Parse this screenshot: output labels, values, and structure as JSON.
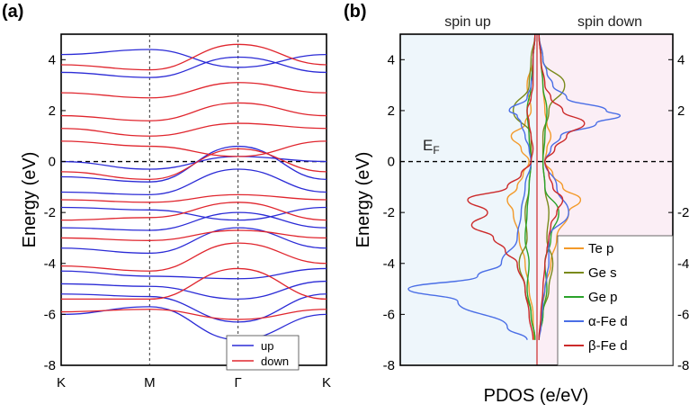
{
  "panel_a_label": "(a)",
  "panel_b_label": "(b)",
  "chart_data": [
    {
      "type": "line",
      "panel": "(a)",
      "ylabel": "Energy (eV)",
      "ylim": [
        -8,
        5
      ],
      "yticks": [
        "4",
        "2",
        "0",
        "-2",
        "-4",
        "-6",
        "-8"
      ],
      "x_ticks": [
        "K",
        "M",
        "Γ",
        "K"
      ],
      "fermi_level": 0,
      "legend": {
        "placement": "bottom-right",
        "entries": [
          "up",
          "down"
        ]
      },
      "colors": {
        "up": "#2b2bd6",
        "down": "#e0262e"
      },
      "x": [
        0,
        1,
        2,
        3
      ],
      "series": [
        {
          "name": "up",
          "bands": [
            [
              -6.0,
              -5.7,
              -7.0,
              -6.0
            ],
            [
              -5.2,
              -5.3,
              -6.3,
              -5.2
            ],
            [
              -4.8,
              -4.9,
              -5.4,
              -4.7
            ],
            [
              -4.3,
              -4.5,
              -4.6,
              -4.2
            ],
            [
              -3.4,
              -3.6,
              -2.6,
              -3.4
            ],
            [
              -2.6,
              -2.7,
              -2.0,
              -2.6
            ],
            [
              -1.8,
              -1.9,
              -2.3,
              -1.8
            ],
            [
              -1.2,
              -1.3,
              -0.3,
              -1.2
            ],
            [
              -0.6,
              -0.8,
              0.6,
              -0.7
            ],
            [
              0.0,
              -0.3,
              0.2,
              0.0
            ],
            [
              3.5,
              3.3,
              4.1,
              3.5
            ],
            [
              4.2,
              4.4,
              3.7,
              4.2
            ]
          ]
        },
        {
          "name": "down",
          "bands": [
            [
              -5.9,
              -5.8,
              -6.2,
              -5.8
            ],
            [
              -5.4,
              -5.4,
              -4.2,
              -5.4
            ],
            [
              -4.1,
              -4.3,
              -3.2,
              -4.0
            ],
            [
              -3.0,
              -3.1,
              -2.7,
              -3.0
            ],
            [
              -2.3,
              -2.2,
              -1.6,
              -2.3
            ],
            [
              -1.5,
              -1.6,
              -1.3,
              -1.5
            ],
            [
              -0.4,
              -0.7,
              0.5,
              -0.4
            ],
            [
              0.8,
              0.6,
              0.2,
              0.8
            ],
            [
              1.3,
              1.0,
              1.5,
              1.3
            ],
            [
              1.8,
              1.6,
              2.3,
              1.8
            ],
            [
              2.7,
              2.5,
              3.1,
              2.7
            ],
            [
              3.8,
              3.6,
              4.6,
              3.8
            ]
          ]
        }
      ]
    },
    {
      "type": "line",
      "panel": "(b)",
      "ylabel": "Energy (eV)",
      "xlabel": "PDOS (e/eV)",
      "ylim": [
        -8,
        5
      ],
      "yticks": [
        "4",
        "2",
        "0",
        "-2",
        "-4",
        "-6",
        "-8"
      ],
      "right_yticks": [
        "4",
        "2",
        "-2",
        "-4",
        "-6",
        "-8"
      ],
      "headers": {
        "left": "spin up",
        "right": "spin down"
      },
      "fermi_label": "E",
      "fermi_label_sub": "F",
      "fermi_level": 0,
      "background": {
        "spin_up": "#eef6fb",
        "spin_down": "#fbeef5"
      },
      "legend": {
        "placement": "bottom-right"
      },
      "series": [
        {
          "name": "Te p",
          "color": "#f39a2a",
          "energy": [
            -7,
            -6,
            -5,
            -4,
            -3,
            -2,
            -1.5,
            -1,
            -0.5,
            0,
            0.5,
            1,
            1.5,
            2,
            3,
            4,
            5
          ],
          "spin_up": [
            0.15,
            0.2,
            0.4,
            0.6,
            0.9,
            1.2,
            1.5,
            1.0,
            0.7,
            0.4,
            0.8,
            1.3,
            0.6,
            0.3,
            0.5,
            0.2,
            0.1
          ],
          "spin_down": [
            0.1,
            0.2,
            0.4,
            0.7,
            1.0,
            1.6,
            2.2,
            1.3,
            0.8,
            0.4,
            0.5,
            0.7,
            0.5,
            0.4,
            0.3,
            0.2,
            0.1
          ]
        },
        {
          "name": "Ge s",
          "color": "#7a8a1c",
          "energy": [
            -7,
            -6,
            -5,
            -4,
            -3,
            -2,
            -1,
            0,
            1,
            2,
            3,
            4,
            5
          ],
          "spin_up": [
            0.1,
            0.3,
            0.6,
            0.9,
            0.5,
            0.6,
            0.4,
            0.3,
            0.3,
            1.2,
            0.4,
            0.3,
            0.1
          ],
          "spin_down": [
            0.1,
            0.3,
            0.6,
            0.8,
            0.5,
            0.6,
            0.4,
            0.3,
            0.3,
            0.6,
            1.4,
            0.3,
            0.1
          ]
        },
        {
          "name": "Ge p",
          "color": "#2aa22a",
          "energy": [
            -7,
            -6,
            -5,
            -4,
            -3,
            -2,
            -1,
            0,
            1,
            2,
            3,
            4,
            5
          ],
          "spin_up": [
            0.1,
            0.3,
            0.5,
            0.4,
            0.6,
            0.5,
            0.4,
            0.3,
            0.4,
            0.5,
            0.3,
            0.2,
            0.1
          ],
          "spin_down": [
            0.1,
            0.3,
            0.5,
            0.4,
            0.7,
            1.1,
            0.4,
            0.3,
            0.4,
            0.5,
            0.3,
            0.2,
            0.1
          ]
        },
        {
          "name": "α-Fe d",
          "color": "#4a6ee6",
          "energy": [
            -7,
            -6.5,
            -5.5,
            -5,
            -4.5,
            -4,
            -3,
            -2,
            -1,
            0,
            0.5,
            1,
            1.5,
            1.8,
            2,
            2.5,
            3,
            3.5,
            4,
            5
          ],
          "spin_up": [
            0.5,
            1.5,
            4.0,
            6.5,
            3.0,
            1.8,
            1.0,
            0.8,
            0.6,
            0.3,
            0.4,
            0.6,
            0.8,
            1.0,
            1.4,
            0.5,
            0.3,
            0.2,
            0.2,
            0.1
          ],
          "spin_down": [
            0.1,
            0.2,
            0.3,
            0.4,
            0.5,
            0.6,
            0.6,
            1.6,
            1.0,
            0.4,
            0.7,
            1.2,
            3.0,
            4.2,
            3.5,
            1.5,
            0.8,
            0.5,
            0.3,
            0.1
          ]
        },
        {
          "name": "β-Fe d",
          "color": "#cc2a2a",
          "energy": [
            -7,
            -6,
            -5,
            -4,
            -3.5,
            -3,
            -2.5,
            -2,
            -1.5,
            -1,
            -0.5,
            0,
            0.5,
            1,
            1.5,
            2,
            2.5,
            3,
            4,
            5
          ],
          "spin_up": [
            0.2,
            0.4,
            0.6,
            1.0,
            1.6,
            2.2,
            3.3,
            2.5,
            3.5,
            1.5,
            0.8,
            0.3,
            0.2,
            0.3,
            0.4,
            0.5,
            0.3,
            0.2,
            0.2,
            0.1
          ],
          "spin_down": [
            0.1,
            0.2,
            0.3,
            0.4,
            0.5,
            0.6,
            0.7,
            1.0,
            1.3,
            0.8,
            0.6,
            0.4,
            0.9,
            1.5,
            2.4,
            1.3,
            0.7,
            0.4,
            0.2,
            0.1
          ]
        }
      ]
    }
  ]
}
